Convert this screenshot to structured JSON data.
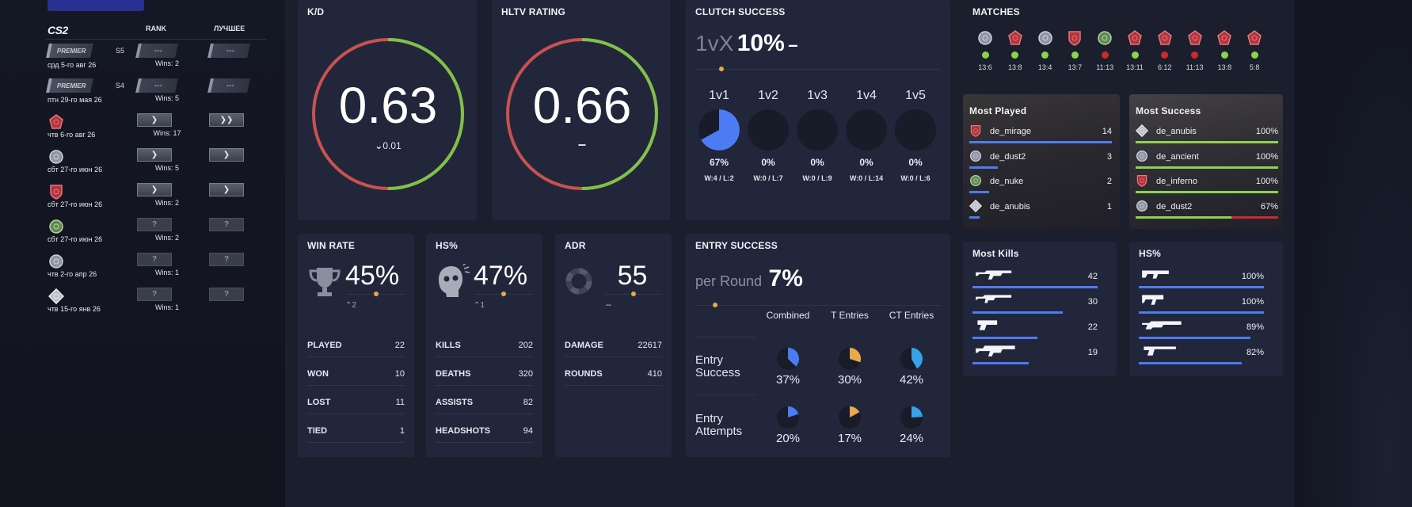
{
  "rank_table": {
    "logo": "CS2",
    "col_rank": "RANK",
    "col_best": "ЛУЧШЕЕ",
    "rows": [
      {
        "icon": "premier",
        "icon_text": "PREMIER",
        "season": "S5",
        "date": "срд 5-го авг 26",
        "rank": "---",
        "best": "---",
        "wins": "Wins: 2"
      },
      {
        "icon": "premier",
        "icon_text": "PREMIER",
        "season": "S4",
        "date": "птн 29-го мая 26",
        "rank": "---",
        "best": "---",
        "wins": "Wins: 5"
      },
      {
        "icon": "map-red",
        "icon_text": "",
        "season": "",
        "date": "чтв 6-го авг 26",
        "rank": "❯",
        "best": "❯❯",
        "wins": "Wins: 17"
      },
      {
        "icon": "map-grey",
        "icon_text": "",
        "season": "",
        "date": "сбт 27-го июн 26",
        "rank": "❯",
        "best": "❯",
        "wins": "Wins: 5"
      },
      {
        "icon": "map-red-shield",
        "icon_text": "",
        "season": "",
        "date": "сбт 27-го июн 26",
        "rank": "❯",
        "best": "❯",
        "wins": "Wins: 2"
      },
      {
        "icon": "map-green",
        "icon_text": "",
        "season": "",
        "date": "сбт 27-го июн 26",
        "rank": "?",
        "best": "?",
        "wins": "Wins: 2"
      },
      {
        "icon": "map-grey-2",
        "icon_text": "",
        "season": "",
        "date": "чтв 2-го апр 26",
        "rank": "?",
        "best": "?",
        "wins": "Wins: 1"
      },
      {
        "icon": "map-white",
        "icon_text": "",
        "season": "",
        "date": "чтв 15-го янв 26",
        "rank": "?",
        "best": "?",
        "wins": "Wins: 1"
      }
    ]
  },
  "kd": {
    "title": "K/D",
    "value": "0.63",
    "delta": "0.01",
    "fraction": 0.63
  },
  "hltv": {
    "title": "HLTV RATING",
    "value": "0.66",
    "delta": "–",
    "fraction": 0.66
  },
  "clutch": {
    "title": "CLUTCH SUCCESS",
    "prefix": "1vX",
    "value": "10%",
    "suffix": "–",
    "cols": [
      {
        "label": "1v1",
        "pct": "67%",
        "wl": "W:4 / L:2",
        "fraction": 0.67
      },
      {
        "label": "1v2",
        "pct": "0%",
        "wl": "W:0 / L:7",
        "fraction": 0
      },
      {
        "label": "1v3",
        "pct": "0%",
        "wl": "W:0 / L:9",
        "fraction": 0
      },
      {
        "label": "1v4",
        "pct": "0%",
        "wl": "W:0 / L:14",
        "fraction": 0
      },
      {
        "label": "1v5",
        "pct": "0%",
        "wl": "W:0 / L:6",
        "fraction": 0
      }
    ]
  },
  "matches": {
    "title": "MATCHES",
    "items": [
      {
        "map": "grey",
        "score": "13:6",
        "result": "win"
      },
      {
        "map": "red",
        "score": "13:8",
        "result": "win"
      },
      {
        "map": "grey",
        "score": "13:4",
        "result": "win"
      },
      {
        "map": "red-shield",
        "score": "13:7",
        "result": "win"
      },
      {
        "map": "green",
        "score": "11:13",
        "result": "loss"
      },
      {
        "map": "red",
        "score": "13:11",
        "result": "win"
      },
      {
        "map": "red",
        "score": "6:12",
        "result": "loss"
      },
      {
        "map": "red",
        "score": "11:13",
        "result": "loss"
      },
      {
        "map": "red",
        "score": "13:8",
        "result": "win"
      },
      {
        "map": "red",
        "score": "5:8",
        "result": "win"
      }
    ]
  },
  "most_played": {
    "title": "Most Played",
    "items": [
      {
        "name": "de_mirage",
        "value": "14",
        "fraction": 1.0
      },
      {
        "name": "de_dust2",
        "value": "3",
        "fraction": 0.2
      },
      {
        "name": "de_nuke",
        "value": "2",
        "fraction": 0.14
      },
      {
        "name": "de_anubis",
        "value": "1",
        "fraction": 0.07
      }
    ]
  },
  "most_success": {
    "title": "Most Success",
    "items": [
      {
        "name": "de_anubis",
        "value": "100%",
        "fraction": 1.0
      },
      {
        "name": "de_ancient",
        "value": "100%",
        "fraction": 1.0
      },
      {
        "name": "de_inferno",
        "value": "100%",
        "fraction": 1.0
      },
      {
        "name": "de_dust2",
        "value": "67%",
        "fraction": 0.67
      }
    ]
  },
  "win_rate": {
    "title": "WIN RATE",
    "value": "45%",
    "delta": "2",
    "rows": [
      {
        "label": "PLAYED",
        "value": "22"
      },
      {
        "label": "WON",
        "value": "10"
      },
      {
        "label": "LOST",
        "value": "11"
      },
      {
        "label": "TIED",
        "value": "1"
      }
    ]
  },
  "hs": {
    "title": "HS%",
    "value": "47%",
    "delta": "1",
    "rows": [
      {
        "label": "KILLS",
        "value": "202"
      },
      {
        "label": "DEATHS",
        "value": "320"
      },
      {
        "label": "ASSISTS",
        "value": "82"
      },
      {
        "label": "HEADSHOTS",
        "value": "94"
      }
    ]
  },
  "adr": {
    "title": "ADR",
    "value": "55",
    "delta": "–",
    "rows": [
      {
        "label": "DAMAGE",
        "value": "22617"
      },
      {
        "label": "ROUNDS",
        "value": "410"
      }
    ]
  },
  "entry": {
    "title": "ENTRY SUCCESS",
    "prefix": "per Round",
    "value": "7%",
    "headers": [
      "Combined",
      "T Entries",
      "CT Entries"
    ],
    "success_label": "Entry Success",
    "attempts_label": "Entry Attempts",
    "success": [
      {
        "pct": "37%",
        "fraction": 0.37,
        "color": "#4d7bf3"
      },
      {
        "pct": "30%",
        "fraction": 0.3,
        "color": "#e8a94a"
      },
      {
        "pct": "42%",
        "fraction": 0.42,
        "color": "#35a3e6"
      }
    ],
    "attempts": [
      {
        "pct": "20%",
        "fraction": 0.2,
        "color": "#4d7bf3"
      },
      {
        "pct": "17%",
        "fraction": 0.17,
        "color": "#e8a94a"
      },
      {
        "pct": "24%",
        "fraction": 0.24,
        "color": "#35a3e6"
      }
    ]
  },
  "most_kills": {
    "title": "Most Kills",
    "items": [
      {
        "weapon": "ak47-icon",
        "value": "42",
        "fraction": 1.0
      },
      {
        "weapon": "awp-icon",
        "value": "30",
        "fraction": 0.72
      },
      {
        "weapon": "deagle-icon",
        "value": "22",
        "fraction": 0.52
      },
      {
        "weapon": "sg553-icon",
        "value": "19",
        "fraction": 0.45
      }
    ]
  },
  "hs_weapons": {
    "title": "HS%",
    "items": [
      {
        "weapon": "mp9-icon",
        "value": "100%",
        "fraction": 1.0
      },
      {
        "weapon": "mac10-icon",
        "value": "100%",
        "fraction": 1.0
      },
      {
        "weapon": "nova-icon",
        "value": "89%",
        "fraction": 0.89
      },
      {
        "weapon": "usp-icon",
        "value": "82%",
        "fraction": 0.82
      }
    ]
  },
  "colors": {
    "accent_blue": "#4d7bf3",
    "win_green": "#8bd34f",
    "loss_red": "#cc2a2a",
    "gauge_red": "#c8524f",
    "gauge_green": "#7ec24a",
    "orange": "#e8a94a"
  }
}
